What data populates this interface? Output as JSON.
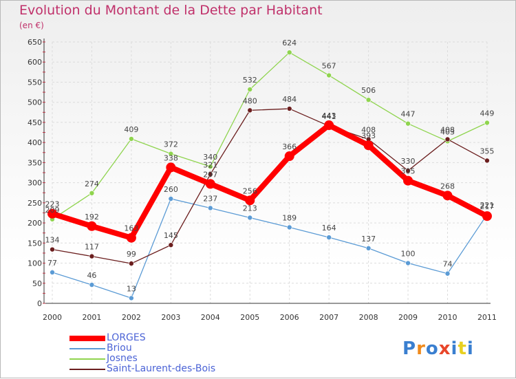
{
  "title": "Evolution du Montant de la Dette par Habitant",
  "unit": "(en €)",
  "logo": "Proxiti",
  "logo_colors": [
    "#3a7fd0",
    "#f08a1c",
    "#3a7fd0",
    "#e8462a",
    "#3a7fd0",
    "#e8d020",
    "#3a7fd0"
  ],
  "chart_data": {
    "type": "line",
    "x": [
      "2000",
      "2001",
      "2002",
      "2003",
      "2004",
      "2005",
      "2006",
      "2007",
      "2008",
      "2009",
      "2010",
      "2011"
    ],
    "ylim": [
      0,
      650
    ],
    "yticks": [
      0,
      50,
      100,
      150,
      200,
      250,
      300,
      350,
      400,
      450,
      500,
      550,
      600,
      650
    ],
    "grid": true,
    "legend_position": "bottom-left",
    "series": [
      {
        "name": "LORGES",
        "color": "#ff0000",
        "width": 8,
        "marker": 7,
        "values": [
          223,
          192,
          163,
          338,
          297,
          256,
          366,
          443,
          393,
          305,
          268,
          217
        ]
      },
      {
        "name": "Briou",
        "color": "#5b9bd5",
        "width": 1.3,
        "marker": 3.5,
        "values": [
          77,
          46,
          13,
          260,
          237,
          213,
          189,
          164,
          137,
          100,
          74,
          221
        ]
      },
      {
        "name": "Josnes",
        "color": "#8fd44e",
        "width": 1.3,
        "marker": 3.5,
        "values": [
          209,
          274,
          409,
          372,
          340,
          532,
          624,
          567,
          506,
          447,
          403,
          449
        ]
      },
      {
        "name": "Saint-Laurent-des-Bois",
        "color": "#6b1e1e",
        "width": 1.3,
        "marker": 3.5,
        "values": [
          134,
          117,
          99,
          145,
          321,
          480,
          484,
          441,
          408,
          330,
          408,
          355
        ]
      }
    ]
  }
}
